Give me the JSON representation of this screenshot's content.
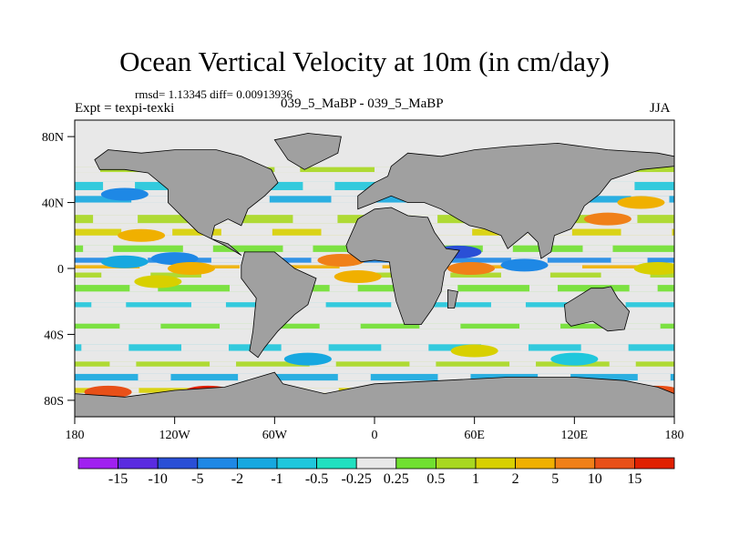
{
  "chart_data": {
    "type": "heatmap",
    "title": "Ocean Vertical Velocity at 10m (in cm/day)",
    "stats": "rmsd= 1.13345 diff= 0.00913936",
    "left_label": "Expt = texpi-texki",
    "center_label": "039_5_MaBP - 039_5_MaBP",
    "right_label": "JJA",
    "x_ticks": [
      {
        "value": -180,
        "label": "180"
      },
      {
        "value": -120,
        "label": "120W"
      },
      {
        "value": -60,
        "label": "60W"
      },
      {
        "value": 0,
        "label": "0"
      },
      {
        "value": 60,
        "label": "60E"
      },
      {
        "value": 120,
        "label": "120E"
      },
      {
        "value": 180,
        "label": "180"
      }
    ],
    "y_ticks": [
      {
        "value": 80,
        "label": "80N"
      },
      {
        "value": 40,
        "label": "40N"
      },
      {
        "value": 0,
        "label": "0"
      },
      {
        "value": -40,
        "label": "40S"
      },
      {
        "value": -80,
        "label": "80S"
      }
    ],
    "xlim": [
      -180,
      180
    ],
    "ylim": [
      -90,
      90
    ],
    "colorbar": {
      "labels": [
        "-15",
        "-10",
        "-5",
        "-2",
        "-1",
        "-0.5",
        "-0.25",
        "0.25",
        "0.5",
        "1",
        "2",
        "5",
        "10",
        "15"
      ],
      "colors": [
        "#a020f0",
        "#5a2be0",
        "#2a4fd6",
        "#1e88e5",
        "#16a8e0",
        "#1fc7dc",
        "#20e0c0",
        "#e8e8e8",
        "#70e030",
        "#a8d820",
        "#d8d000",
        "#f0b000",
        "#f08018",
        "#e85018",
        "#e02000"
      ]
    },
    "land_color": "#a0a0a0",
    "highlights": [
      {
        "lon": -150,
        "lat": 45,
        "value": -5
      },
      {
        "lon": -140,
        "lat": 20,
        "value": 2
      },
      {
        "lon": -120,
        "lat": 6,
        "value": -5
      },
      {
        "lon": -150,
        "lat": 4,
        "value": -2
      },
      {
        "lon": -110,
        "lat": 0,
        "value": 2
      },
      {
        "lon": -130,
        "lat": -8,
        "value": 1
      },
      {
        "lon": -20,
        "lat": 5,
        "value": 5
      },
      {
        "lon": -10,
        "lat": -5,
        "value": 2
      },
      {
        "lon": 50,
        "lat": 10,
        "value": -10
      },
      {
        "lon": 58,
        "lat": 0,
        "value": 5
      },
      {
        "lon": 90,
        "lat": 2,
        "value": -5
      },
      {
        "lon": 140,
        "lat": 30,
        "value": 5
      },
      {
        "lon": 160,
        "lat": 40,
        "value": 2
      },
      {
        "lon": 170,
        "lat": 0,
        "value": 1
      },
      {
        "lon": -160,
        "lat": -75,
        "value": 10
      },
      {
        "lon": -100,
        "lat": -75,
        "value": 15
      },
      {
        "lon": 170,
        "lat": -75,
        "value": 10
      },
      {
        "lon": -40,
        "lat": -55,
        "value": -2
      },
      {
        "lon": 60,
        "lat": -50,
        "value": 1
      },
      {
        "lon": 120,
        "lat": -55,
        "value": -1
      }
    ]
  }
}
